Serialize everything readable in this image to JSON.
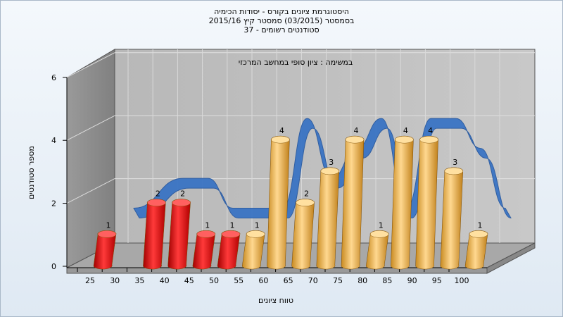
{
  "chart_data": {
    "type": "bar",
    "title": [
      "היסטוגרמת ציונים בקורס - יסודות הכימיה",
      "בסמסטר  (03/2015)  סמסטר קיץ 2015/16",
      "סטודנטים רשומים - 37"
    ],
    "annotation": "במשימה : ציון סופי במחשב המרכזי",
    "xlabel": "טווח ציונים",
    "ylabel": "מספר סטודנטים",
    "x_ticks": [
      "25",
      "30",
      "35",
      "40",
      "45",
      "50",
      "55",
      "60",
      "65",
      "70",
      "75",
      "80",
      "85",
      "90",
      "95",
      "100"
    ],
    "y_ticks": [
      "0",
      "2",
      "4",
      "6"
    ],
    "ylim": [
      0,
      6
    ],
    "bars": [
      {
        "x": 25,
        "value": 1,
        "label": "1",
        "color": "red"
      },
      {
        "x": 35,
        "value": 2,
        "label": "2",
        "color": "red"
      },
      {
        "x": 40,
        "value": 2,
        "label": "2",
        "color": "red"
      },
      {
        "x": 45,
        "value": 1,
        "label": "1",
        "color": "red"
      },
      {
        "x": 50,
        "value": 1,
        "label": "1",
        "color": "red"
      },
      {
        "x": 55,
        "value": 1,
        "label": "1",
        "color": "orange"
      },
      {
        "x": 60,
        "value": 4,
        "label": "4",
        "color": "orange"
      },
      {
        "x": 65,
        "value": 2,
        "label": "2",
        "color": "orange"
      },
      {
        "x": 70,
        "value": 3,
        "label": "3",
        "color": "orange"
      },
      {
        "x": 75,
        "value": 4,
        "label": "4",
        "color": "orange"
      },
      {
        "x": 80,
        "value": 1,
        "label": "1",
        "color": "orange"
      },
      {
        "x": 85,
        "value": 4,
        "label": "4",
        "color": "orange"
      },
      {
        "x": 90,
        "value": 4,
        "label": "4",
        "color": "orange"
      },
      {
        "x": 95,
        "value": 3,
        "label": "3",
        "color": "orange"
      },
      {
        "x": 100,
        "value": 1,
        "label": "1",
        "color": "orange"
      }
    ],
    "trend_color": "#3a74c4",
    "colors": {
      "red": "#e02020",
      "orange": "#f0b040"
    }
  }
}
